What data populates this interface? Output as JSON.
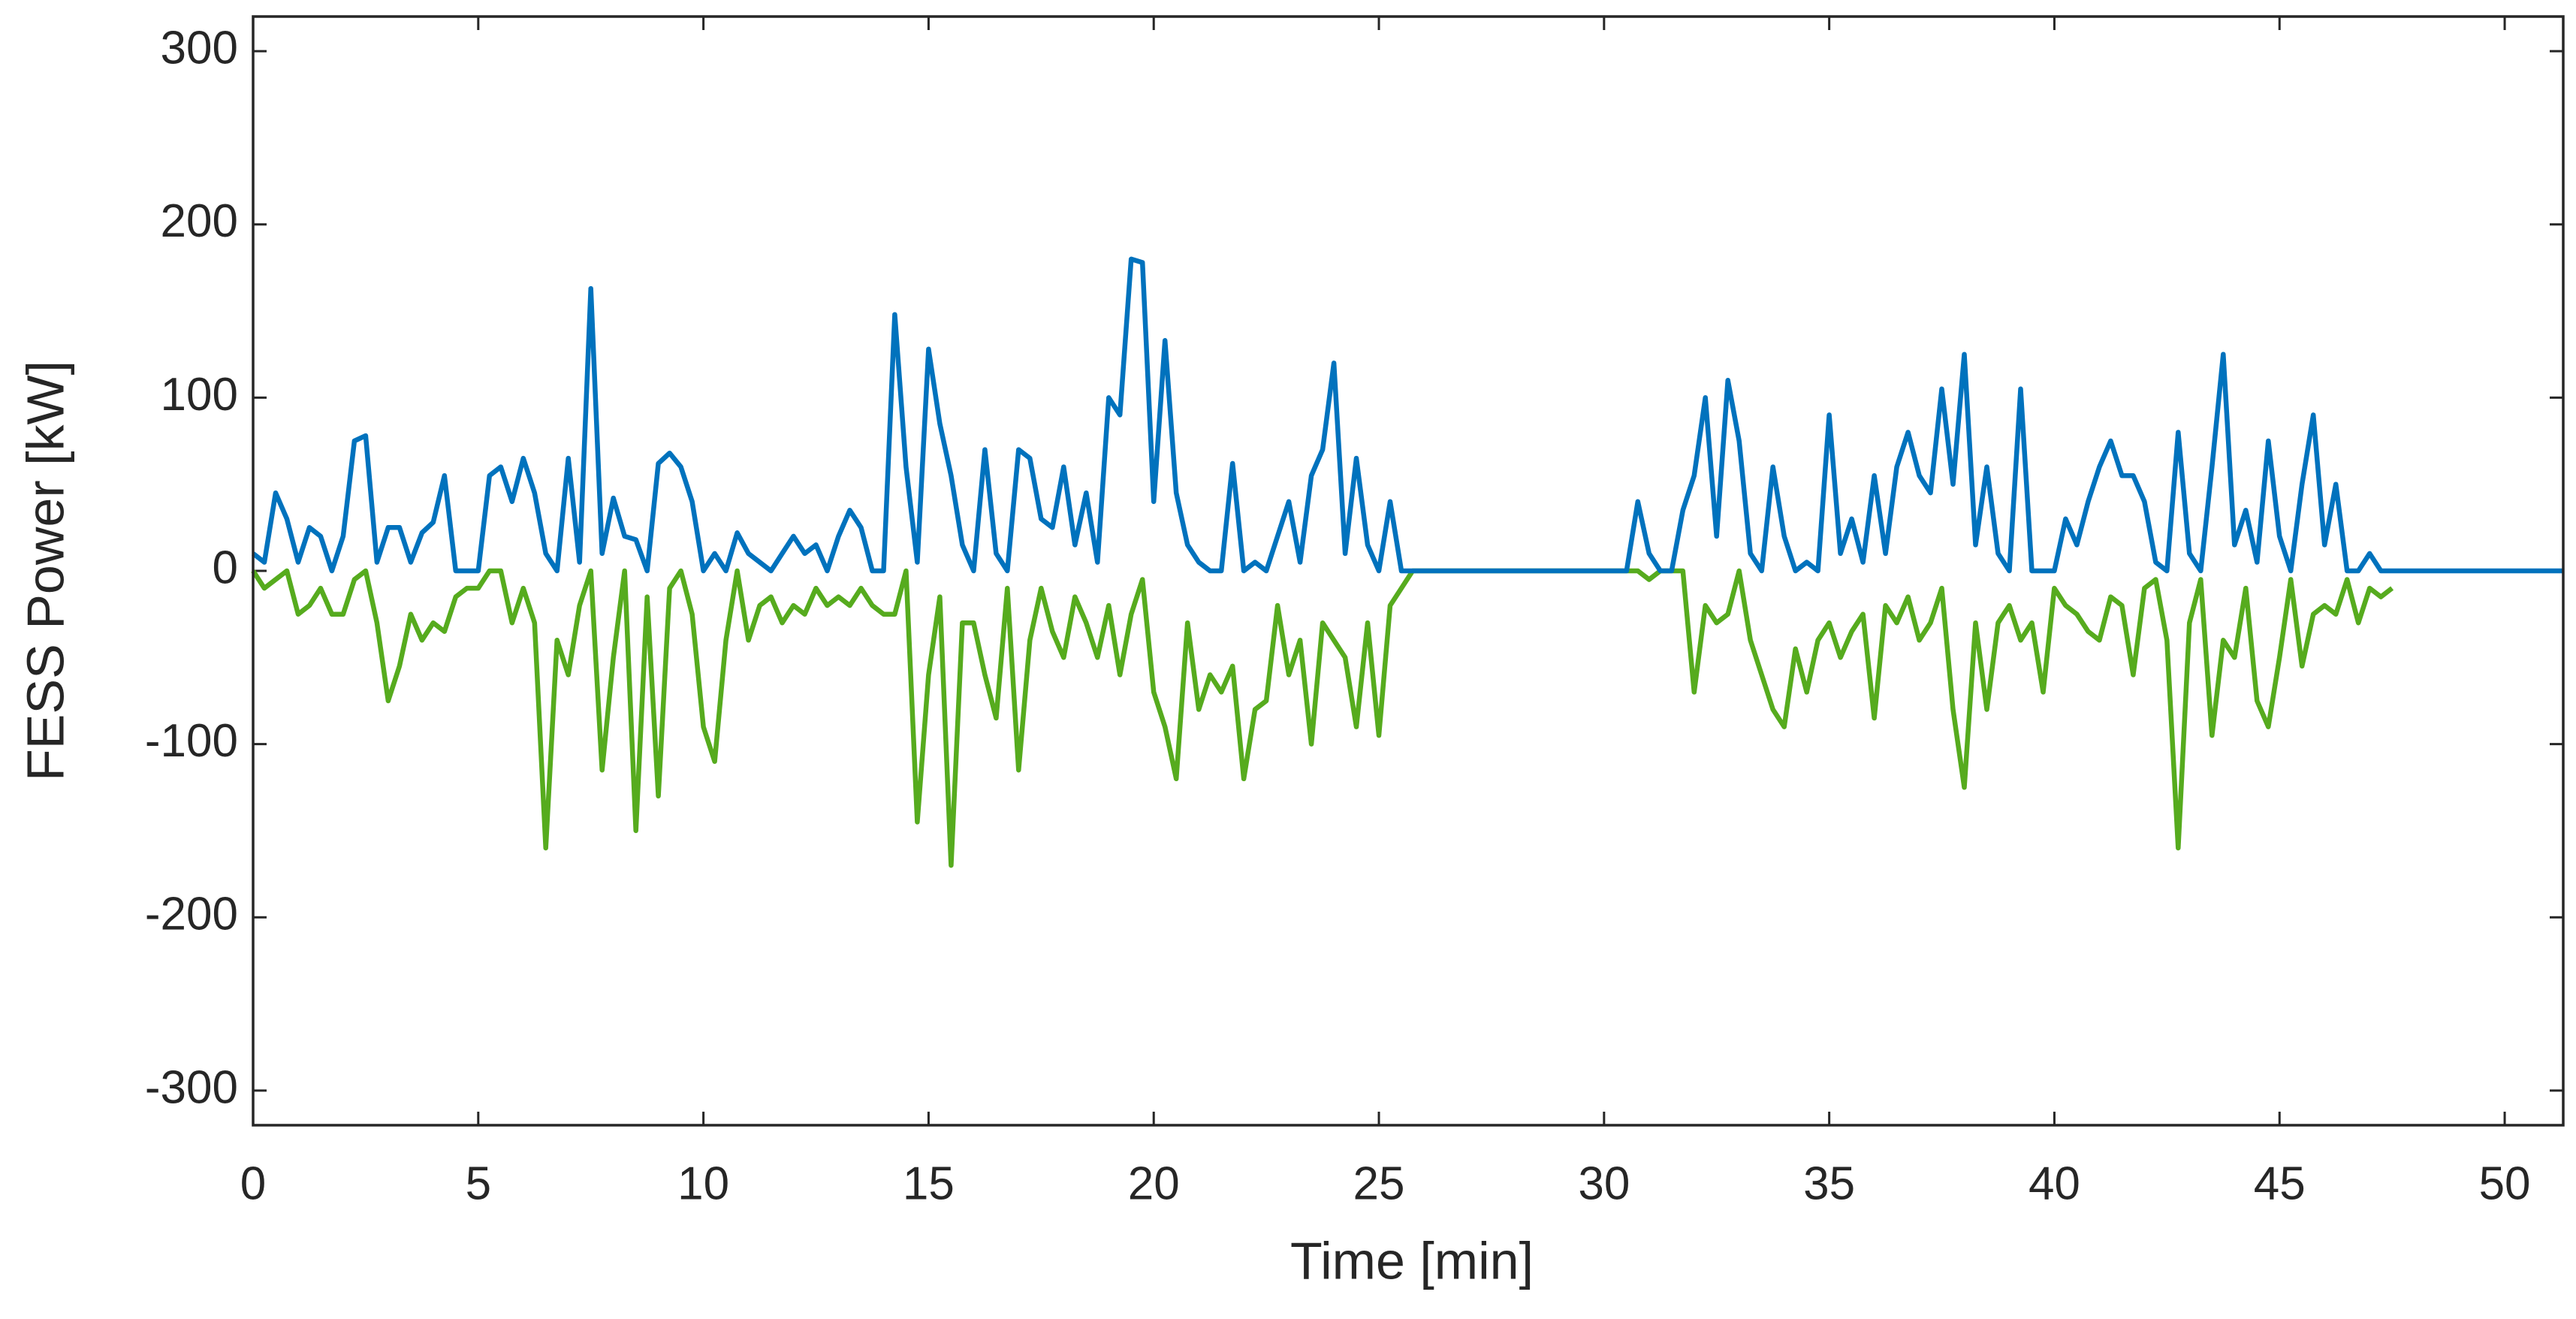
{
  "chart_data": {
    "type": "line",
    "xlabel": "Time [min]",
    "ylabel": "FESS Power [kW]",
    "xlim": [
      0,
      51.3
    ],
    "xticks": [
      0,
      5,
      10,
      15,
      20,
      25,
      30,
      35,
      40,
      45,
      50
    ],
    "ylim": [
      -320,
      320
    ],
    "yticks": [
      -300,
      -200,
      -100,
      0,
      100,
      200,
      300
    ],
    "grid": false,
    "x": [
      0,
      0.25,
      0.5,
      0.75,
      1,
      1.25,
      1.5,
      1.75,
      2,
      2.25,
      2.5,
      2.75,
      3,
      3.25,
      3.5,
      3.75,
      4,
      4.25,
      4.5,
      4.75,
      5,
      5.25,
      5.5,
      5.75,
      6,
      6.25,
      6.5,
      6.75,
      7,
      7.25,
      7.5,
      7.75,
      8,
      8.25,
      8.5,
      8.75,
      9,
      9.25,
      9.5,
      9.75,
      10,
      10.25,
      10.5,
      10.75,
      11,
      11.25,
      11.5,
      11.75,
      12,
      12.25,
      12.5,
      12.75,
      13,
      13.25,
      13.5,
      13.75,
      14,
      14.25,
      14.5,
      14.75,
      15,
      15.25,
      15.5,
      15.75,
      16,
      16.25,
      16.5,
      16.75,
      17,
      17.25,
      17.5,
      17.75,
      18,
      18.25,
      18.5,
      18.75,
      19,
      19.25,
      19.5,
      19.75,
      20,
      20.25,
      20.5,
      20.75,
      21,
      21.25,
      21.5,
      21.75,
      22,
      22.25,
      22.5,
      22.75,
      23,
      23.25,
      23.5,
      23.75,
      24,
      24.25,
      24.5,
      24.75,
      25,
      25.25,
      25.5,
      25.75,
      26,
      28,
      30.5,
      30.75,
      31,
      31.25,
      31.5,
      31.75,
      32,
      32.25,
      32.5,
      32.75,
      33,
      33.25,
      33.5,
      33.75,
      34,
      34.25,
      34.5,
      34.75,
      35,
      35.25,
      35.5,
      35.75,
      36,
      36.25,
      36.5,
      36.75,
      37,
      37.25,
      37.5,
      37.75,
      38,
      38.25,
      38.5,
      38.75,
      39,
      39.25,
      39.5,
      39.75,
      40,
      40.25,
      40.5,
      40.75,
      41,
      41.25,
      41.5,
      41.75,
      42,
      42.25,
      42.5,
      42.75,
      43,
      43.25,
      43.5,
      43.75,
      44,
      44.25,
      44.5,
      44.75,
      45,
      45.25,
      45.5,
      45.75,
      46,
      46.25,
      46.5,
      46.75,
      47,
      47.25,
      47.5,
      51.3
    ],
    "series": [
      {
        "color": "#56AB1E",
        "values": [
          0,
          -10,
          -5,
          0,
          -25,
          -20,
          -10,
          -25,
          -25,
          -5,
          0,
          -30,
          -75,
          -55,
          -25,
          -40,
          -30,
          -35,
          -15,
          -10,
          -10,
          0,
          0,
          -30,
          -10,
          -30,
          -160,
          -40,
          -60,
          -20,
          0,
          -115,
          -50,
          0,
          -150,
          -15,
          -130,
          -10,
          0,
          -25,
          -90,
          -110,
          -40,
          0,
          -40,
          -20,
          -15,
          -30,
          -20,
          -25,
          -10,
          -20,
          -15,
          -20,
          -10,
          -20,
          -25,
          -25,
          0,
          -145,
          -60,
          -15,
          -170,
          -30,
          -30,
          -60,
          -85,
          -10,
          -115,
          -40,
          -10,
          -35,
          -50,
          -15,
          -30,
          -50,
          -20,
          -60,
          -25,
          -5,
          -70,
          -90,
          -120,
          -30,
          -80,
          -60,
          -70,
          -55,
          -120,
          -80,
          -75,
          -20,
          -60,
          -40,
          -100,
          -30,
          -40,
          -50,
          -90,
          -30,
          -95,
          -20,
          -10,
          0,
          0,
          0,
          0,
          0,
          -5,
          0,
          0,
          0,
          -70,
          -20,
          -30,
          -25,
          0,
          -40,
          -60,
          -80,
          -90,
          -45,
          -70,
          -40,
          -30,
          -50,
          -35,
          -25,
          -85,
          -20,
          -30,
          -15,
          -40,
          -30,
          -10,
          -80,
          -125,
          -30,
          -80,
          -30,
          -20,
          -40,
          -30,
          -70,
          -10,
          -20,
          -25,
          -35,
          -40,
          -15,
          -20,
          -60,
          -10,
          -5,
          -40,
          -160,
          -30,
          -5,
          -95,
          -40,
          -50,
          -10,
          -75,
          -90,
          -50,
          -5,
          -55,
          -25,
          -20,
          -25,
          -5,
          -30,
          -10,
          -15,
          -10,
          null
        ]
      },
      {
        "color": "#0072BD",
        "values": [
          10,
          5,
          45,
          30,
          5,
          25,
          20,
          0,
          20,
          75,
          78,
          5,
          25,
          25,
          5,
          22,
          28,
          55,
          0,
          0,
          0,
          55,
          60,
          40,
          65,
          45,
          10,
          0,
          65,
          5,
          163,
          10,
          42,
          20,
          18,
          0,
          62,
          68,
          60,
          40,
          0,
          10,
          0,
          22,
          10,
          5,
          0,
          10,
          20,
          10,
          15,
          0,
          20,
          35,
          25,
          0,
          0,
          148,
          60,
          5,
          128,
          85,
          55,
          15,
          0,
          70,
          10,
          0,
          70,
          65,
          30,
          25,
          60,
          15,
          45,
          5,
          100,
          90,
          180,
          178,
          40,
          133,
          45,
          15,
          5,
          0,
          0,
          62,
          0,
          5,
          0,
          20,
          40,
          5,
          55,
          70,
          120,
          10,
          65,
          15,
          0,
          40,
          0,
          0,
          0,
          0,
          0,
          40,
          10,
          0,
          0,
          35,
          55,
          100,
          20,
          110,
          75,
          10,
          0,
          60,
          20,
          0,
          5,
          0,
          90,
          10,
          30,
          5,
          55,
          10,
          60,
          80,
          55,
          45,
          105,
          50,
          125,
          15,
          60,
          10,
          0,
          105,
          0,
          0,
          0,
          30,
          15,
          40,
          60,
          75,
          55,
          55,
          40,
          5,
          0,
          80,
          10,
          0,
          60,
          125,
          15,
          35,
          5,
          75,
          20,
          0,
          50,
          90,
          15,
          50,
          0,
          0,
          10,
          0,
          0,
          0
        ]
      }
    ]
  }
}
